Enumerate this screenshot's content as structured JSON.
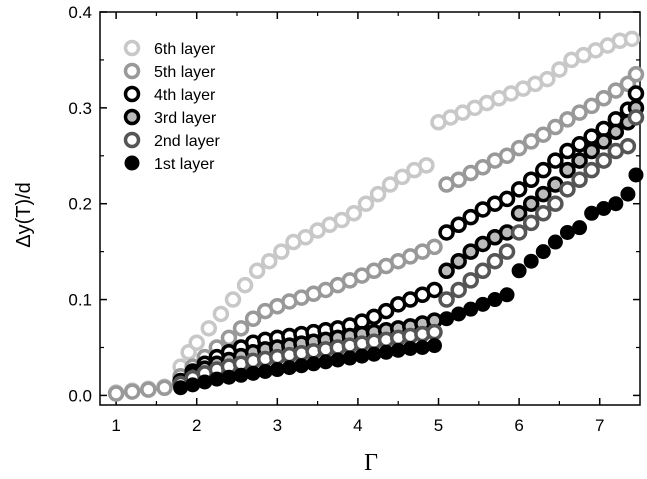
{
  "chart_data": {
    "type": "scatter",
    "title": "",
    "xlabel": "Γ",
    "ylabel": "Δy(T)/d",
    "xlim": [
      0.8,
      7.5
    ],
    "ylim": [
      -0.01,
      0.4
    ],
    "xticks": [
      1,
      2,
      3,
      4,
      5,
      6,
      7
    ],
    "yticks": [
      0.0,
      0.1,
      0.2,
      0.3,
      0.4
    ],
    "xtick_labels": [
      "1",
      "2",
      "3",
      "4",
      "5",
      "6",
      "7"
    ],
    "ytick_labels": [
      "0.0",
      "0.1",
      "0.2",
      "0.3",
      "0.4"
    ],
    "legend_position": "top-left",
    "grid": false,
    "series": [
      {
        "name": "6th layer",
        "color": "#c8c8c8",
        "marker": "open-circle",
        "x": [
          1.0,
          1.2,
          1.4,
          1.6,
          1.8,
          1.9,
          2.0,
          2.15,
          2.3,
          2.45,
          2.6,
          2.75,
          2.9,
          3.05,
          3.2,
          3.35,
          3.5,
          3.65,
          3.8,
          3.95,
          4.1,
          4.25,
          4.4,
          4.55,
          4.7,
          4.85,
          5.0,
          5.15,
          5.3,
          5.45,
          5.6,
          5.75,
          5.9,
          6.05,
          6.2,
          6.35,
          6.5,
          6.65,
          6.8,
          6.95,
          7.1,
          7.25,
          7.4
        ],
        "y": [
          0.003,
          0.005,
          0.007,
          0.009,
          0.03,
          0.045,
          0.055,
          0.07,
          0.085,
          0.1,
          0.115,
          0.13,
          0.14,
          0.15,
          0.16,
          0.165,
          0.172,
          0.178,
          0.183,
          0.19,
          0.2,
          0.21,
          0.22,
          0.228,
          0.235,
          0.24,
          0.285,
          0.29,
          0.295,
          0.3,
          0.305,
          0.31,
          0.315,
          0.32,
          0.325,
          0.33,
          0.34,
          0.35,
          0.355,
          0.36,
          0.365,
          0.37,
          0.372
        ]
      },
      {
        "name": "5th layer",
        "color": "#999999",
        "marker": "open-circle",
        "x": [
          1.0,
          1.2,
          1.4,
          1.6,
          1.8,
          1.95,
          2.1,
          2.25,
          2.4,
          2.55,
          2.7,
          2.85,
          3.0,
          3.15,
          3.3,
          3.45,
          3.6,
          3.75,
          3.9,
          4.05,
          4.2,
          4.35,
          4.5,
          4.65,
          4.8,
          4.95,
          5.1,
          5.25,
          5.4,
          5.55,
          5.7,
          5.85,
          6.0,
          6.15,
          6.3,
          6.45,
          6.6,
          6.75,
          6.9,
          7.05,
          7.2,
          7.35,
          7.45
        ],
        "y": [
          0.002,
          0.004,
          0.006,
          0.008,
          0.02,
          0.03,
          0.04,
          0.05,
          0.06,
          0.07,
          0.08,
          0.088,
          0.093,
          0.098,
          0.102,
          0.106,
          0.11,
          0.115,
          0.12,
          0.125,
          0.13,
          0.135,
          0.14,
          0.145,
          0.15,
          0.155,
          0.22,
          0.225,
          0.232,
          0.238,
          0.245,
          0.25,
          0.258,
          0.265,
          0.272,
          0.28,
          0.288,
          0.295,
          0.302,
          0.31,
          0.318,
          0.325,
          0.335
        ]
      },
      {
        "name": "4th layer",
        "color": "#000000",
        "marker": "open-circle-thick",
        "x": [
          1.8,
          1.95,
          2.1,
          2.25,
          2.4,
          2.55,
          2.7,
          2.85,
          3.0,
          3.15,
          3.3,
          3.45,
          3.6,
          3.75,
          3.9,
          4.05,
          4.2,
          4.35,
          4.5,
          4.65,
          4.8,
          4.95,
          5.1,
          5.25,
          5.4,
          5.55,
          5.7,
          5.85,
          6.0,
          6.15,
          6.3,
          6.45,
          6.6,
          6.75,
          6.9,
          7.05,
          7.2,
          7.35,
          7.45
        ],
        "y": [
          0.015,
          0.025,
          0.033,
          0.04,
          0.045,
          0.05,
          0.055,
          0.058,
          0.06,
          0.062,
          0.064,
          0.066,
          0.068,
          0.07,
          0.073,
          0.077,
          0.082,
          0.088,
          0.095,
          0.1,
          0.105,
          0.11,
          0.17,
          0.178,
          0.186,
          0.194,
          0.2,
          0.205,
          0.215,
          0.225,
          0.235,
          0.245,
          0.255,
          0.262,
          0.27,
          0.278,
          0.288,
          0.298,
          0.315
        ]
      },
      {
        "name": "3rd layer",
        "color": "#000000",
        "marker": "open-circle-gray-fill",
        "x": [
          1.8,
          1.95,
          2.1,
          2.25,
          2.4,
          2.55,
          2.7,
          2.85,
          3.0,
          3.15,
          3.3,
          3.45,
          3.6,
          3.75,
          3.9,
          4.05,
          4.2,
          4.35,
          4.5,
          4.65,
          4.8,
          4.95,
          5.1,
          5.25,
          5.4,
          5.55,
          5.7,
          5.85,
          6.0,
          6.15,
          6.3,
          6.45,
          6.6,
          6.75,
          6.9,
          7.05,
          7.2,
          7.35,
          7.45
        ],
        "y": [
          0.013,
          0.022,
          0.028,
          0.033,
          0.037,
          0.041,
          0.045,
          0.048,
          0.05,
          0.052,
          0.054,
          0.056,
          0.058,
          0.06,
          0.062,
          0.064,
          0.066,
          0.068,
          0.07,
          0.072,
          0.075,
          0.078,
          0.13,
          0.14,
          0.15,
          0.158,
          0.165,
          0.17,
          0.19,
          0.2,
          0.21,
          0.22,
          0.235,
          0.245,
          0.255,
          0.265,
          0.275,
          0.285,
          0.3
        ]
      },
      {
        "name": "2nd layer",
        "color": "#555555",
        "marker": "open-circle-gray",
        "x": [
          1.8,
          1.95,
          2.1,
          2.25,
          2.4,
          2.55,
          2.7,
          2.85,
          3.0,
          3.15,
          3.3,
          3.45,
          3.6,
          3.75,
          3.9,
          4.05,
          4.2,
          4.35,
          4.5,
          4.65,
          4.8,
          4.95,
          5.1,
          5.25,
          5.4,
          5.55,
          5.7,
          5.85,
          6.0,
          6.15,
          6.3,
          6.45,
          6.6,
          6.75,
          6.9,
          7.05,
          7.2,
          7.35,
          7.45
        ],
        "y": [
          0.012,
          0.018,
          0.023,
          0.027,
          0.03,
          0.033,
          0.036,
          0.038,
          0.04,
          0.042,
          0.044,
          0.046,
          0.048,
          0.05,
          0.052,
          0.054,
          0.056,
          0.058,
          0.06,
          0.062,
          0.064,
          0.066,
          0.1,
          0.11,
          0.12,
          0.13,
          0.14,
          0.15,
          0.17,
          0.18,
          0.19,
          0.2,
          0.215,
          0.225,
          0.235,
          0.245,
          0.255,
          0.26,
          0.29
        ]
      },
      {
        "name": "1st layer",
        "color": "#000000",
        "marker": "filled-circle",
        "x": [
          1.8,
          1.95,
          2.1,
          2.25,
          2.4,
          2.55,
          2.7,
          2.85,
          3.0,
          3.15,
          3.3,
          3.45,
          3.6,
          3.75,
          3.9,
          4.05,
          4.2,
          4.35,
          4.5,
          4.65,
          4.8,
          4.95,
          5.1,
          5.25,
          5.4,
          5.55,
          5.7,
          5.85,
          6.0,
          6.15,
          6.3,
          6.45,
          6.6,
          6.75,
          6.9,
          7.05,
          7.2,
          7.35,
          7.45
        ],
        "y": [
          0.008,
          0.011,
          0.014,
          0.017,
          0.019,
          0.021,
          0.023,
          0.025,
          0.027,
          0.029,
          0.031,
          0.033,
          0.035,
          0.037,
          0.039,
          0.041,
          0.043,
          0.045,
          0.047,
          0.049,
          0.05,
          0.052,
          0.08,
          0.085,
          0.09,
          0.095,
          0.1,
          0.105,
          0.13,
          0.14,
          0.15,
          0.16,
          0.17,
          0.175,
          0.19,
          0.195,
          0.2,
          0.21,
          0.23
        ]
      }
    ]
  }
}
